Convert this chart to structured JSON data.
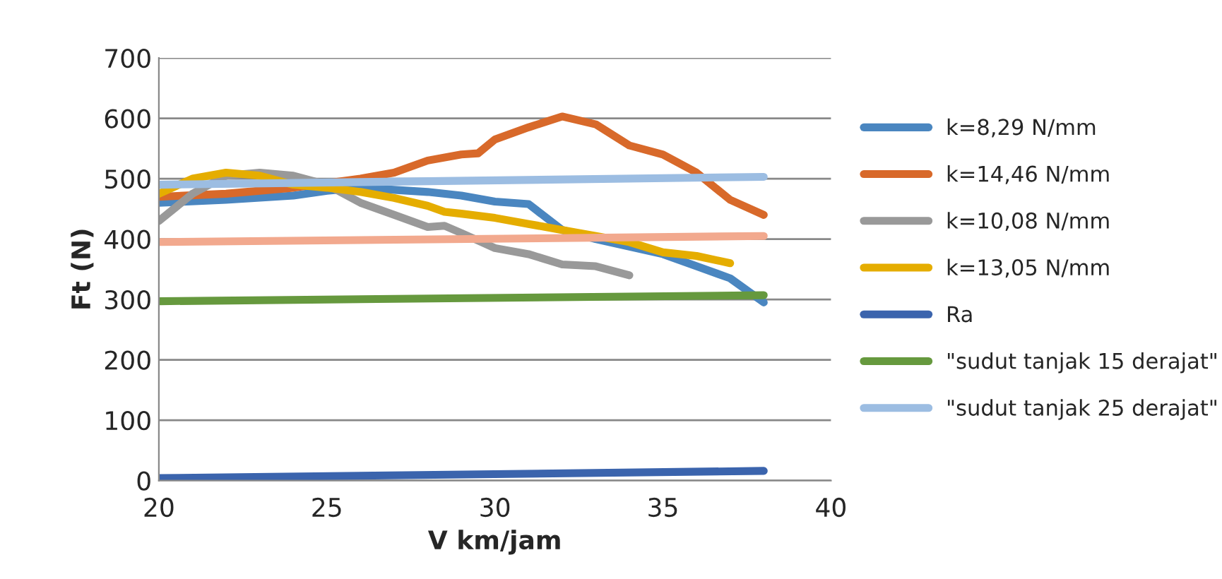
{
  "chart_data": {
    "type": "line",
    "xlabel": "V km/jam",
    "ylabel": "Ft (N)",
    "xlim": [
      20,
      40
    ],
    "xticks": [
      20,
      25,
      30,
      35,
      40
    ],
    "ylim": [
      0,
      700
    ],
    "yticks": [
      0,
      100,
      200,
      300,
      400,
      500,
      600,
      700
    ],
    "grid": "y",
    "legend": "right",
    "line_style": "solid",
    "marker": "none",
    "series": [
      {
        "name": "k=8,29 N/mm",
        "color": "#4a86c0",
        "x": [
          20,
          22,
          24,
          25,
          26,
          28,
          29,
          30,
          31,
          32,
          33,
          35,
          36,
          37,
          38
        ],
        "values": [
          460,
          465,
          472,
          480,
          485,
          478,
          472,
          462,
          458,
          415,
          400,
          375,
          355,
          335,
          295
        ]
      },
      {
        "name": "k=14,46 N/mm",
        "color": "#d8692a",
        "x": [
          20,
          22,
          24,
          26,
          27,
          28,
          29,
          29.5,
          30,
          31,
          32,
          33,
          34,
          35,
          36,
          37,
          38
        ],
        "values": [
          470,
          475,
          485,
          500,
          510,
          530,
          540,
          542,
          565,
          585,
          603,
          590,
          555,
          540,
          510,
          465,
          440
        ]
      },
      {
        "name": "k=10,08 N/mm",
        "color": "#999999",
        "x": [
          20,
          21,
          22,
          23,
          24,
          25,
          26,
          27,
          28,
          28.5,
          29,
          30,
          31,
          32,
          33,
          34
        ],
        "values": [
          430,
          475,
          505,
          510,
          505,
          490,
          460,
          440,
          420,
          422,
          410,
          385,
          375,
          358,
          355,
          340
        ]
      },
      {
        "name": "k=13,05 N/mm",
        "color": "#e5ad00",
        "x": [
          20,
          21,
          22,
          23,
          24,
          25,
          26,
          27,
          28,
          28.5,
          29,
          30,
          31,
          32,
          33,
          34,
          35,
          36,
          37
        ],
        "values": [
          475,
          500,
          510,
          505,
          490,
          485,
          478,
          468,
          455,
          445,
          442,
          435,
          425,
          415,
          405,
          395,
          378,
          372,
          360
        ]
      },
      {
        "name": "Ra",
        "color": "#3b64ad",
        "x": [
          20,
          38
        ],
        "values": [
          4,
          16
        ]
      },
      {
        "name": "\"sudut tanjak 15 derajat\"",
        "color": "#66993e",
        "x": [
          20,
          38
        ],
        "values": [
          297,
          307
        ]
      },
      {
        "name": "\"sudut tanjak 25 derajat\"",
        "color": "#9cbde2",
        "x": [
          20,
          38
        ],
        "values": [
          490,
          503
        ]
      },
      {
        "color": "#f2a98e",
        "x": [
          20,
          38
        ],
        "values": [
          395,
          405
        ]
      }
    ]
  }
}
